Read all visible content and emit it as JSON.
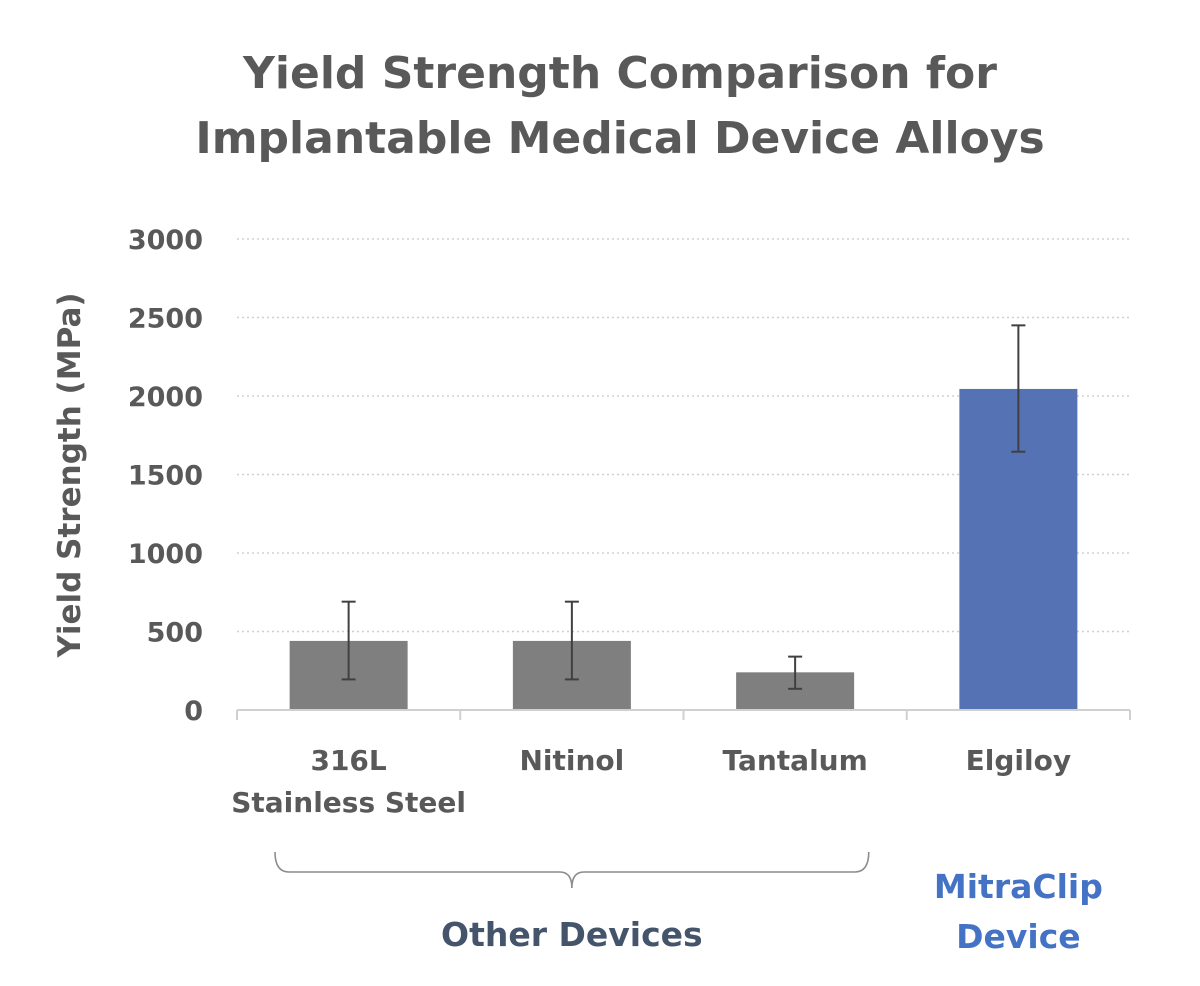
{
  "chart_data": {
    "type": "bar",
    "title": [
      "Yield Strength Comparison for",
      "Implantable Medical Device Alloys"
    ],
    "xlabel": "",
    "ylabel": "Yield Strength (MPa)",
    "ylim": [
      0,
      3000
    ],
    "yticks": [
      "0",
      "500",
      "1000",
      "1500",
      "2000",
      "2500",
      "3000"
    ],
    "grid": true,
    "categories": [
      [
        "316L",
        "Stainless Steel"
      ],
      [
        "Nitinol"
      ],
      [
        "Tantalum"
      ],
      [
        "Elgiloy"
      ]
    ],
    "values": [
      440,
      440,
      240,
      2045
    ],
    "error_low": [
      195,
      195,
      135,
      1645
    ],
    "error_high": [
      690,
      690,
      340,
      2450
    ],
    "bar_colors": [
      "#7f7f7f",
      "#7f7f7f",
      "#7f7f7f",
      "#5472b4"
    ],
    "groups": [
      {
        "label": "Other Devices",
        "categories": [
          0,
          1,
          2
        ],
        "color": "#44546a"
      },
      {
        "label": [
          "MitraClip",
          "Device"
        ],
        "categories": [
          3
        ],
        "color": "#4472c4"
      }
    ]
  }
}
